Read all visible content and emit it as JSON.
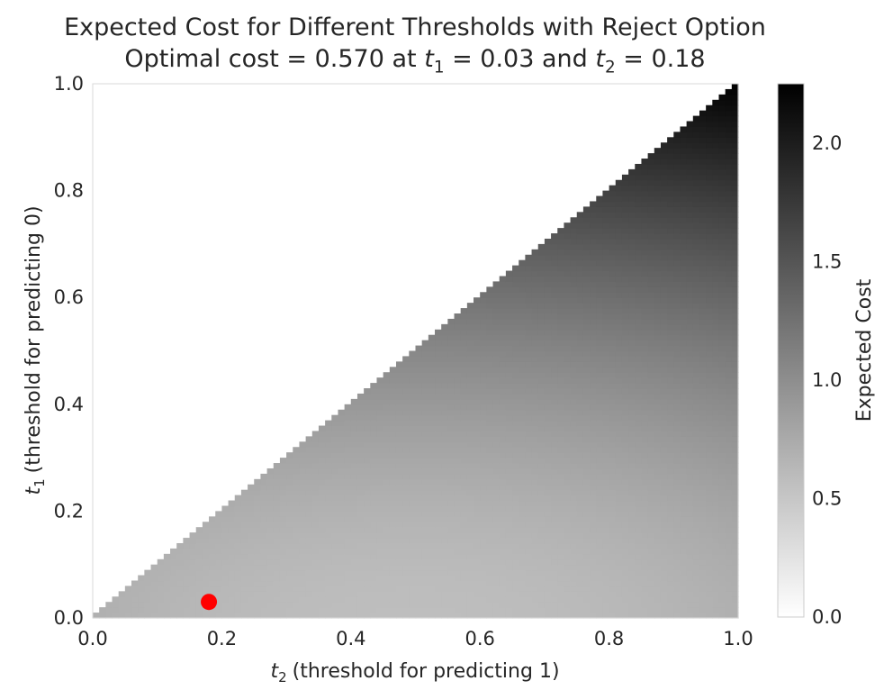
{
  "title": {
    "line1": "Expected Cost for Different Thresholds with Reject Option",
    "line2_prefix": "Optimal cost = 0.570 at",
    "t1_var": "t",
    "t1_sub": "1",
    "t1_value": "= 0.03 and",
    "t2_var": "t",
    "t2_sub": "2",
    "t2_value": "= 0.18"
  },
  "chart_data": {
    "type": "heatmap",
    "xlabel": {
      "var": "t",
      "sub": "2",
      "text": "(threshold for predicting 1)"
    },
    "ylabel": {
      "var": "t",
      "sub": "1",
      "text": "(threshold for predicting 0)"
    },
    "xlim": [
      0,
      1
    ],
    "ylim": [
      0,
      1
    ],
    "x_ticks": [
      "0.0",
      "0.2",
      "0.4",
      "0.6",
      "0.8",
      "1.0"
    ],
    "y_ticks": [
      "0.0",
      "0.2",
      "0.4",
      "0.6",
      "0.8",
      "1.0"
    ],
    "grid": false,
    "region": "t1 <= t2 (upper-left triangle undefined / blank)",
    "grid_resolution": 100,
    "cost_samples": [
      {
        "t1": 0.03,
        "t2": 0.05,
        "cost": 0.7
      },
      {
        "t1": 0.03,
        "t2": 0.18,
        "cost": 0.57
      },
      {
        "t1": 0.05,
        "t2": 0.5,
        "cost": 0.64
      },
      {
        "t1": 0.05,
        "t2": 1.0,
        "cost": 0.6
      },
      {
        "t1": 0.2,
        "t2": 0.25,
        "cost": 0.72
      },
      {
        "t1": 0.2,
        "t2": 0.6,
        "cost": 0.7
      },
      {
        "t1": 0.4,
        "t2": 0.5,
        "cost": 0.95
      },
      {
        "t1": 0.4,
        "t2": 1.0,
        "cost": 0.92
      },
      {
        "t1": 0.6,
        "t2": 0.7,
        "cost": 1.35
      },
      {
        "t1": 0.6,
        "t2": 1.0,
        "cost": 1.33
      },
      {
        "t1": 0.8,
        "t2": 0.85,
        "cost": 1.9
      },
      {
        "t1": 0.8,
        "t2": 1.0,
        "cost": 1.9
      },
      {
        "t1": 1.0,
        "t2": 1.0,
        "cost": 2.25
      }
    ],
    "optimum": {
      "t1": 0.03,
      "t2": 0.18,
      "cost": 0.57,
      "color": "#ff0000"
    },
    "colorbar": {
      "label": "Expected Cost",
      "min": 0.0,
      "max": 2.25,
      "ticks": [
        "0.0",
        "0.5",
        "1.0",
        "1.5",
        "2.0"
      ],
      "colormap": "Greys (white to black)"
    }
  }
}
